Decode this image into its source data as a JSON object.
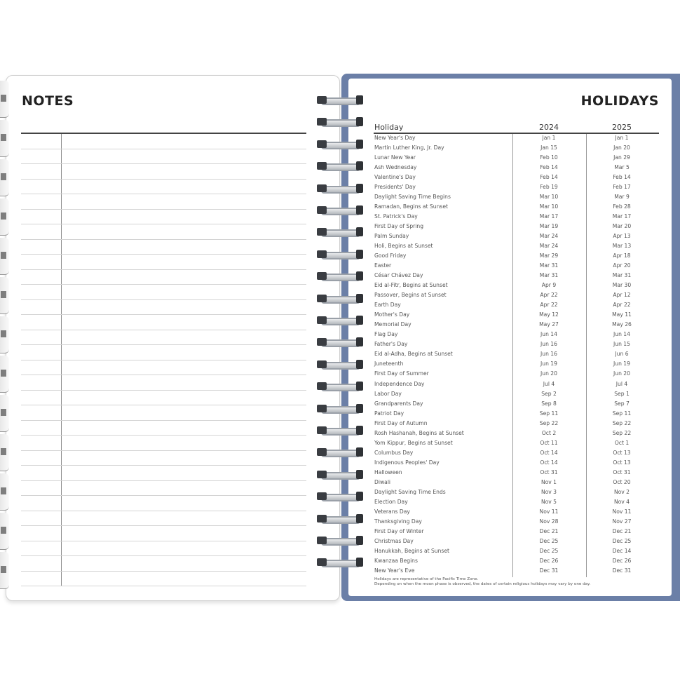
{
  "notes": {
    "title": "NOTES",
    "line_count": 30
  },
  "holidays": {
    "title": "HOLIDAYS",
    "columns": [
      "Holiday",
      "2024",
      "2025"
    ],
    "rows": [
      [
        "New Year's Day",
        "Jan 1",
        "Jan 1"
      ],
      [
        "Martin Luther King, Jr. Day",
        "Jan 15",
        "Jan 20"
      ],
      [
        "Lunar New Year",
        "Feb 10",
        "Jan 29"
      ],
      [
        "Ash Wednesday",
        "Feb 14",
        "Mar 5"
      ],
      [
        "Valentine's Day",
        "Feb 14",
        "Feb 14"
      ],
      [
        "Presidents' Day",
        "Feb 19",
        "Feb 17"
      ],
      [
        "Daylight Saving Time Begins",
        "Mar 10",
        "Mar 9"
      ],
      [
        "Ramadan, Begins at Sunset",
        "Mar 10",
        "Feb 28"
      ],
      [
        "St. Patrick's Day",
        "Mar 17",
        "Mar 17"
      ],
      [
        "First Day of Spring",
        "Mar 19",
        "Mar 20"
      ],
      [
        "Palm Sunday",
        "Mar 24",
        "Apr 13"
      ],
      [
        "Holi, Begins at Sunset",
        "Mar 24",
        "Mar 13"
      ],
      [
        "Good Friday",
        "Mar 29",
        "Apr 18"
      ],
      [
        "Easter",
        "Mar 31",
        "Apr 20"
      ],
      [
        "César Chávez Day",
        "Mar 31",
        "Mar 31"
      ],
      [
        "Eid al-Fitr, Begins at Sunset",
        "Apr 9",
        "Mar 30"
      ],
      [
        "Passover, Begins at Sunset",
        "Apr 22",
        "Apr 12"
      ],
      [
        "Earth Day",
        "Apr 22",
        "Apr 22"
      ],
      [
        "Mother's Day",
        "May 12",
        "May 11"
      ],
      [
        "Memorial Day",
        "May 27",
        "May 26"
      ],
      [
        "Flag Day",
        "Jun 14",
        "Jun 14"
      ],
      [
        "Father's Day",
        "Jun 16",
        "Jun 15"
      ],
      [
        "Eid al-Adha, Begins at Sunset",
        "Jun 16",
        "Jun 6"
      ],
      [
        "Juneteenth",
        "Jun 19",
        "Jun 19"
      ],
      [
        "First Day of Summer",
        "Jun 20",
        "Jun 20"
      ],
      [
        "Independence Day",
        "Jul 4",
        "Jul 4"
      ],
      [
        "Labor Day",
        "Sep 2",
        "Sep 1"
      ],
      [
        "Grandparents Day",
        "Sep 8",
        "Sep 7"
      ],
      [
        "Patriot Day",
        "Sep 11",
        "Sep 11"
      ],
      [
        "First Day of Autumn",
        "Sep 22",
        "Sep 22"
      ],
      [
        "Rosh Hashanah, Begins at Sunset",
        "Oct 2",
        "Sep 22"
      ],
      [
        "Yom Kippur, Begins at Sunset",
        "Oct 11",
        "Oct 1"
      ],
      [
        "Columbus Day",
        "Oct 14",
        "Oct 13"
      ],
      [
        "Indigenous Peoples' Day",
        "Oct 14",
        "Oct 13"
      ],
      [
        "Halloween",
        "Oct 31",
        "Oct 31"
      ],
      [
        "Diwali",
        "Nov 1",
        "Oct 20"
      ],
      [
        "Daylight Saving Time Ends",
        "Nov 3",
        "Nov 2"
      ],
      [
        "Election Day",
        "Nov 5",
        "Nov 4"
      ],
      [
        "Veterans Day",
        "Nov 11",
        "Nov 11"
      ],
      [
        "Thanksgiving Day",
        "Nov 28",
        "Nov 27"
      ],
      [
        "First Day of Winter",
        "Dec 21",
        "Dec 21"
      ],
      [
        "Christmas Day",
        "Dec 25",
        "Dec 25"
      ],
      [
        "Hanukkah, Begins at Sunset",
        "Dec 25",
        "Dec 14"
      ],
      [
        "Kwanzaa Begins",
        "Dec 26",
        "Dec 26"
      ],
      [
        "New Year's Eve",
        "Dec 31",
        "Dec 31"
      ]
    ],
    "footnotes": [
      "Holidays are representative of the Pacific Time Zone.",
      "Depending on when the moon phase is observed, the dates of certain religious holidays may vary by one day."
    ]
  },
  "colors": {
    "cover": "#6b7fa7"
  }
}
